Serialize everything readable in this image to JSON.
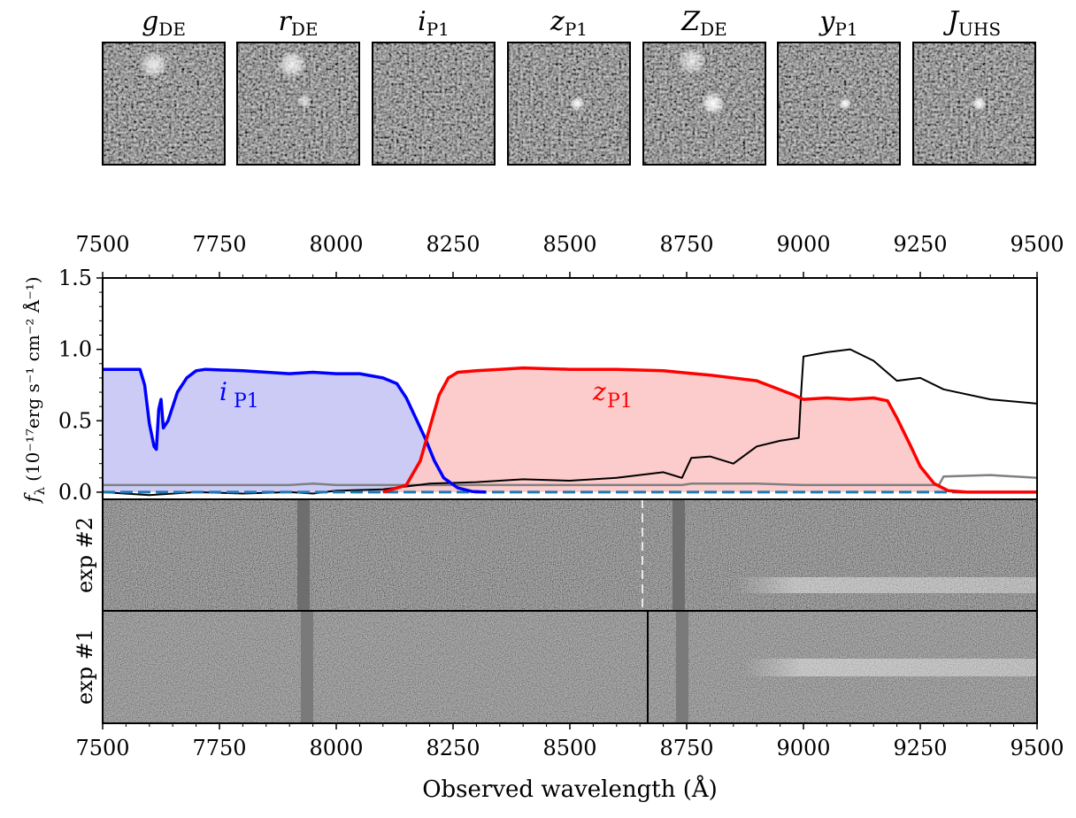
{
  "chart_data": {
    "type": "line",
    "cutouts": [
      {
        "band": "g",
        "sub": "DE"
      },
      {
        "band": "r",
        "sub": "DE"
      },
      {
        "band": "i",
        "sub": "P1"
      },
      {
        "band": "z",
        "sub": "P1"
      },
      {
        "band": "Z",
        "sub": "DE"
      },
      {
        "band": "y",
        "sub": "P1"
      },
      {
        "band": "J",
        "sub": "UHS"
      }
    ],
    "xlabel": "Observed wavelength (Å)",
    "xlim": [
      7500,
      9500
    ],
    "xticks": [
      "7500",
      "7750",
      "8000",
      "8250",
      "8500",
      "8750",
      "9000",
      "9250",
      "9500"
    ],
    "ylabel": {
      "main": "f",
      "sub": "λ",
      "units": "(10⁻¹⁷erg s⁻¹ cm⁻² Å⁻¹)"
    },
    "ylim": [
      -0.05,
      1.5
    ],
    "yticks": [
      "0.0",
      "0.5",
      "1.0",
      "1.5"
    ],
    "filter_labels": {
      "i": {
        "band": "i",
        "sub": "P1"
      },
      "z": {
        "band": "z",
        "sub": "P1"
      }
    },
    "panels": [
      "exp #2",
      "exp #1"
    ],
    "colors": {
      "i_filter": "#0000ff",
      "i_fill": "#c8c8f5",
      "z_filter": "#ff0000",
      "z_fill": "#fcc8c8",
      "flux": "#000000",
      "error": "#808080",
      "zero_line": "#1f77b4"
    },
    "series": [
      {
        "key": "i_filter",
        "x": [
          7500,
          7580,
          7590,
          7600,
          7610,
          7615,
          7620,
          7625,
          7630,
          7640,
          7660,
          7680,
          7700,
          7720,
          7800,
          7900,
          7950,
          8000,
          8050,
          8100,
          8130,
          8150,
          8170,
          8190,
          8210,
          8230,
          8260,
          8290,
          8320
        ],
        "y": [
          0.86,
          0.86,
          0.75,
          0.48,
          0.32,
          0.3,
          0.58,
          0.65,
          0.45,
          0.5,
          0.7,
          0.8,
          0.85,
          0.86,
          0.85,
          0.83,
          0.84,
          0.83,
          0.83,
          0.8,
          0.76,
          0.66,
          0.52,
          0.38,
          0.22,
          0.1,
          0.03,
          0.005,
          0.0
        ]
      },
      {
        "key": "z_filter",
        "x": [
          8100,
          8150,
          8180,
          8200,
          8220,
          8240,
          8260,
          8300,
          8350,
          8400,
          8500,
          8600,
          8700,
          8800,
          8900,
          8980,
          9000,
          9050,
          9100,
          9150,
          9180,
          9200,
          9230,
          9250,
          9280,
          9310,
          9350,
          9500
        ],
        "y": [
          0.0,
          0.05,
          0.22,
          0.45,
          0.68,
          0.8,
          0.84,
          0.85,
          0.86,
          0.87,
          0.86,
          0.86,
          0.85,
          0.82,
          0.78,
          0.68,
          0.65,
          0.66,
          0.65,
          0.66,
          0.64,
          0.52,
          0.32,
          0.18,
          0.06,
          0.01,
          0.0,
          0.0
        ]
      },
      {
        "key": "flux",
        "x": [
          7500,
          7600,
          7700,
          7800,
          7900,
          7950,
          8000,
          8100,
          8200,
          8300,
          8400,
          8500,
          8600,
          8700,
          8740,
          8760,
          8800,
          8850,
          8900,
          8950,
          8990,
          8995,
          9000,
          9050,
          9100,
          9150,
          9200,
          9250,
          9300,
          9400,
          9500
        ],
        "y": [
          0.0,
          -0.02,
          0.0,
          -0.01,
          0.0,
          -0.01,
          0.01,
          0.02,
          0.06,
          0.07,
          0.09,
          0.08,
          0.1,
          0.14,
          0.1,
          0.24,
          0.25,
          0.2,
          0.32,
          0.36,
          0.38,
          0.7,
          0.95,
          0.98,
          1.0,
          0.92,
          0.78,
          0.8,
          0.72,
          0.65,
          0.62
        ]
      },
      {
        "key": "error",
        "x": [
          7500,
          7900,
          7950,
          8000,
          8200,
          8500,
          8700,
          8740,
          8760,
          8900,
          9000,
          9200,
          9290,
          9300,
          9400,
          9500
        ],
        "y": [
          0.05,
          0.05,
          0.06,
          0.05,
          0.05,
          0.05,
          0.05,
          0.05,
          0.06,
          0.06,
          0.05,
          0.05,
          0.05,
          0.11,
          0.12,
          0.1
        ]
      }
    ]
  }
}
